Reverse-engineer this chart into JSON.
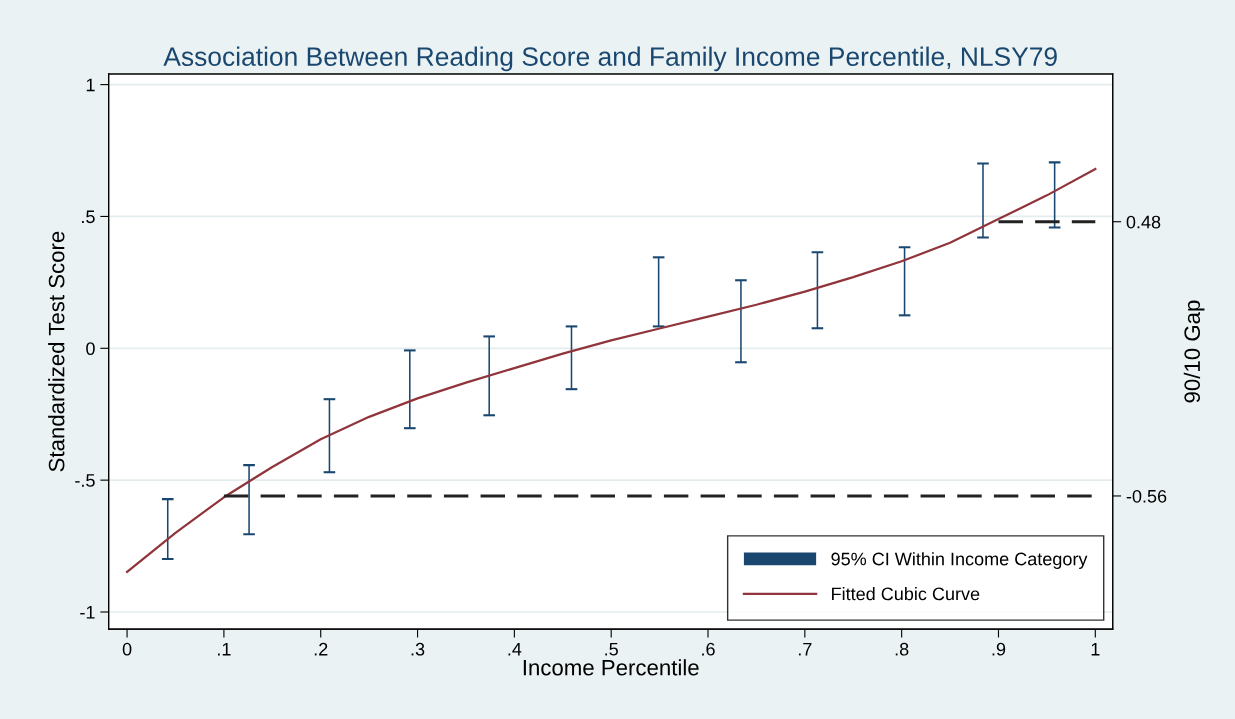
{
  "chart_data": {
    "type": "line",
    "title": "Association Between Reading Score and Family Income Percentile, NLSY79",
    "xlabel": "Income Percentile",
    "ylabel": "Standardized Test Score",
    "y2label": "90/10 Gap",
    "xlim": [
      -0.019,
      1.018
    ],
    "xticks": [
      0,
      {
        "value": 0.1,
        "label": ".1"
      },
      {
        "value": 0.2,
        "label": ".2"
      },
      {
        "value": 0.3,
        "label": ".3"
      },
      {
        "value": 0.4,
        "label": ".4"
      },
      {
        "value": 0.5,
        "label": ".5"
      },
      {
        "value": 0.6,
        "label": ".6"
      },
      {
        "value": 0.7,
        "label": ".7"
      },
      {
        "value": 0.8,
        "label": ".8"
      },
      {
        "value": 0.9,
        "label": ".9"
      },
      1
    ],
    "ylim": [
      -1.065,
      1.04
    ],
    "yticks": [
      {
        "value": -1,
        "label": "-1"
      },
      {
        "value": -0.5,
        "label": "-.5"
      },
      0,
      {
        "value": 0.5,
        "label": ".5"
      },
      1
    ],
    "y2lim": [
      -1.065,
      1.04
    ],
    "y2ticks": [
      -0.56,
      0.48
    ],
    "grid": "y",
    "legend": "bottom right",
    "series": [
      {
        "name": "95% CI Within Income Category",
        "type": "bar",
        "color": "#1a476f",
        "x": [
          0.042,
          0.126,
          0.209,
          0.292,
          0.374,
          0.459,
          0.549,
          0.634,
          0.713,
          0.803,
          0.884,
          0.958
        ],
        "base": [
          -0.799,
          -0.705,
          -0.47,
          -0.303,
          -0.254,
          -0.155,
          0.083,
          -0.053,
          0.076,
          0.125,
          0.42,
          0.458
        ],
        "values": [
          0.227,
          0.262,
          0.277,
          0.295,
          0.299,
          0.238,
          0.262,
          0.311,
          0.288,
          0.258,
          0.281,
          0.247
        ]
      },
      {
        "name": "Fitted Cubic Curve",
        "line_style": "solid",
        "color": "#90353b",
        "x": [
          0,
          0.05,
          0.1,
          0.15,
          0.2,
          0.25,
          0.3,
          0.35,
          0.4,
          0.45,
          0.5,
          0.55,
          0.6,
          0.65,
          0.7,
          0.75,
          0.8,
          0.85,
          0.9,
          0.95,
          1
        ],
        "values": [
          -0.848,
          -0.7,
          -0.565,
          -0.45,
          -0.345,
          -0.26,
          -0.19,
          -0.13,
          -0.075,
          -0.02,
          0.03,
          0.075,
          0.12,
          0.165,
          0.215,
          0.27,
          0.33,
          0.4,
          0.49,
          0.58,
          0.68
        ]
      },
      {
        "axis": "y2",
        "line_style": "dashed",
        "color": "#222222",
        "x": [
          0.1,
          1
        ],
        "values": [
          -0.56,
          -0.56
        ]
      },
      {
        "axis": "y2",
        "line_style": "dashed",
        "color": "#222222",
        "x": [
          0.9,
          1
        ],
        "values": [
          0.48,
          0.48
        ]
      }
    ]
  }
}
